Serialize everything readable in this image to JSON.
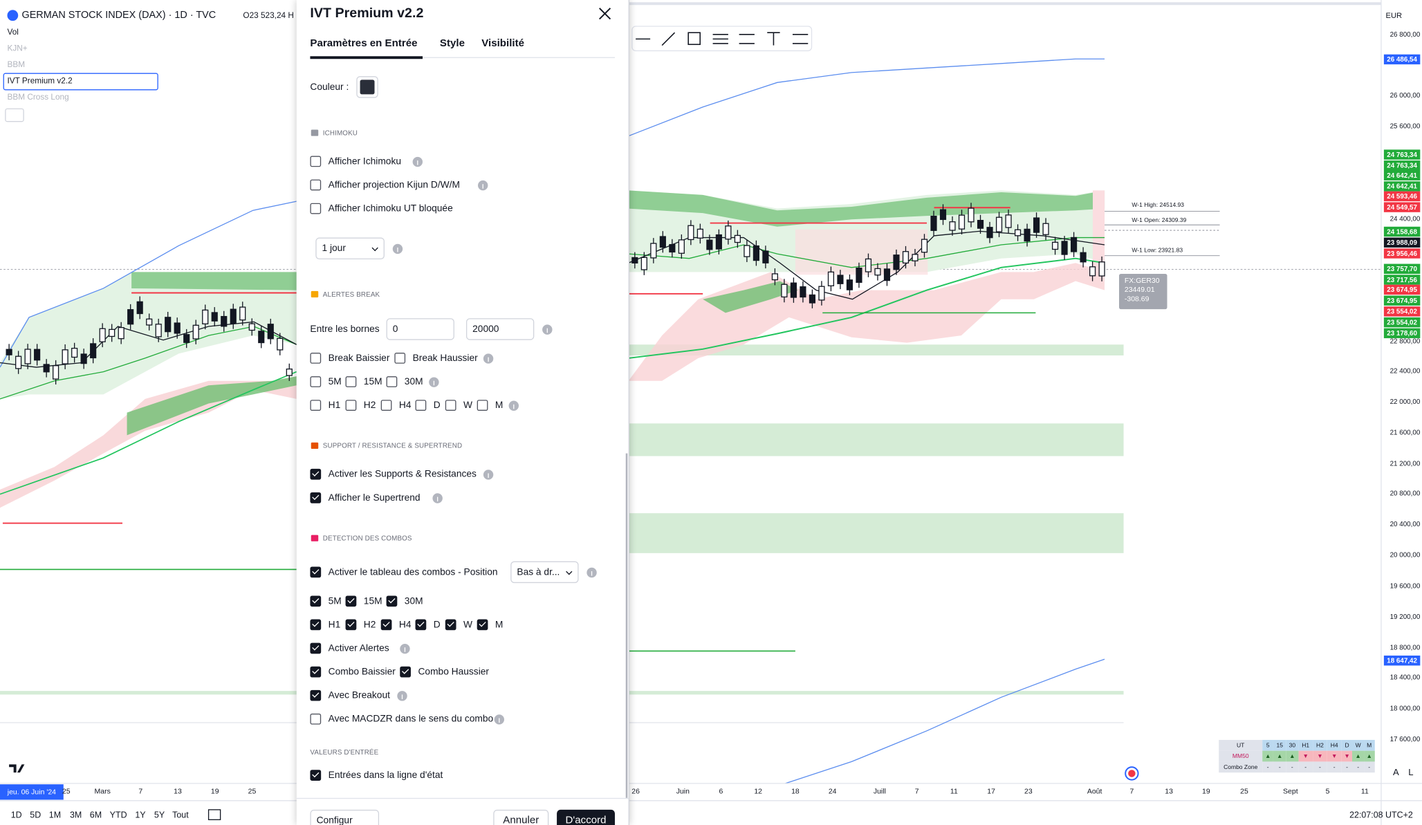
{
  "header": {
    "symbol": "GERMAN STOCK INDEX (DAX) · 1D · TVC",
    "ohlc": "O23 523,24 H"
  },
  "indicators": [
    "Vol",
    "KJN+",
    "BBM",
    "IVT Premium v2.2",
    "BBM Cross Long"
  ],
  "dialog": {
    "title": "IVT Premium v2.2",
    "tabs": [
      "Paramètres en Entrée",
      "Style",
      "Visibilité"
    ],
    "color_label": "Couleur :",
    "ichimoku": {
      "heading": "ICHIMOKU",
      "options": [
        {
          "label": "Afficher Ichimoku",
          "checked": false
        },
        {
          "label": "Afficher projection Kijun D/W/M",
          "checked": false
        },
        {
          "label": "Afficher Ichimoku UT bloquée",
          "checked": false
        }
      ],
      "period": "1 jour"
    },
    "alerts": {
      "heading": "ALERTES BREAK",
      "range_label": "Entre les bornes",
      "range": [
        0,
        20000
      ],
      "options": [
        {
          "label": "Break Baissier",
          "checked": false
        },
        {
          "label": "Break Haussier",
          "checked": false
        },
        {
          "label": "5M",
          "checked": false
        },
        {
          "label": "15M",
          "checked": false
        },
        {
          "label": "30M",
          "checked": false
        },
        {
          "label": "H1",
          "checked": false
        },
        {
          "label": "H2",
          "checked": false
        },
        {
          "label": "H4",
          "checked": false
        },
        {
          "label": "D",
          "checked": false
        },
        {
          "label": "W",
          "checked": false
        },
        {
          "label": "M",
          "checked": false
        }
      ]
    },
    "support": {
      "heading": "SUPPORT / RESISTANCE & SUPERTREND",
      "options": [
        {
          "label": "Activer les Supports & Resistances",
          "checked": true
        },
        {
          "label": "Afficher le Supertrend",
          "checked": true
        }
      ]
    },
    "combos": {
      "heading": "DETECTION DES COMBOS",
      "position": "Bas à dr...",
      "options": [
        {
          "label": "Activer le tableau des combos  - Position",
          "checked": true
        },
        {
          "label": "5M",
          "checked": true
        },
        {
          "label": "15M",
          "checked": true
        },
        {
          "label": "30M",
          "checked": true
        },
        {
          "label": "H1",
          "checked": true
        },
        {
          "label": "H2",
          "checked": true
        },
        {
          "label": "H4",
          "checked": true
        },
        {
          "label": "D",
          "checked": true
        },
        {
          "label": "W",
          "checked": true
        },
        {
          "label": "M",
          "checked": true
        },
        {
          "label": "Activer Alertes",
          "checked": true
        },
        {
          "label": "Combo Baissier",
          "checked": true
        },
        {
          "label": "Combo Haussier",
          "checked": true
        },
        {
          "label": "Avec Breakout",
          "checked": true
        },
        {
          "label": "Avec MACDZR dans le sens du combo",
          "checked": false
        }
      ]
    },
    "entries": {
      "heading": "VALEURS D'ENTRÉE",
      "options": [
        {
          "label": "Entrées dans la ligne d'état",
          "checked": true
        }
      ]
    },
    "buttons": {
      "preset": "Configur",
      "cancel": "Annuler",
      "ok": "D'accord"
    }
  },
  "price_axis": {
    "currency": "EUR",
    "labels": [
      "26 800,00",
      "26 000,00",
      "25 600,00",
      "24 400,00",
      "22 800,00",
      "22 400,00",
      "22 000,00",
      "21 600,00",
      "21 200,00",
      "20 800,00",
      "20 400,00",
      "20 000,00",
      "19 600,00",
      "19 200,00",
      "18 800,00",
      "18 400,00",
      "18 000,00",
      "17 600,00"
    ],
    "badges": [
      {
        "text": "26 486,54",
        "color": "#2962ff"
      },
      {
        "text": "24 763,34",
        "color": "#22ab3a"
      },
      {
        "text": "24 763,34",
        "color": "#22ab3a"
      },
      {
        "text": "24 642,41",
        "color": "#22ab3a"
      },
      {
        "text": "24 642,41",
        "color": "#22ab3a"
      },
      {
        "text": "24 593,46",
        "color": "#f23645"
      },
      {
        "text": "24 549,57",
        "color": "#f23645"
      },
      {
        "text": "24 158,68",
        "color": "#22ab3a"
      },
      {
        "text": "23 988,09",
        "color": "#131722"
      },
      {
        "text": "23 956,46",
        "color": "#f23645"
      },
      {
        "text": "23 757,70",
        "color": "#22ab3a"
      },
      {
        "text": "23 717,56",
        "color": "#22ab3a"
      },
      {
        "text": "23 674,95",
        "color": "#f23645"
      },
      {
        "text": "23 674,95",
        "color": "#22ab3a"
      },
      {
        "text": "23 554,02",
        "color": "#f23645"
      },
      {
        "text": "23 554,02",
        "color": "#22ab3a"
      },
      {
        "text": "23 178,60",
        "color": "#22ab3a"
      },
      {
        "text": "18 647,42",
        "color": "#2962ff"
      }
    ]
  },
  "time_axis": {
    "cursor": "jeu. 06 Juin '24",
    "left": [
      "25",
      "Mars",
      "7",
      "13",
      "19",
      "25"
    ],
    "right": [
      "26",
      "Juin",
      "6",
      "12",
      "18",
      "24",
      "Juill",
      "7",
      "11",
      "17",
      "23",
      "Août",
      "7",
      "13",
      "19",
      "25",
      "Sept",
      "5",
      "11"
    ]
  },
  "annotations": {
    "levels": [
      "W-1 High: 24514.93",
      "W-1 Open: 24309.39",
      "W-1 Low: 23921.83"
    ],
    "tooltip": [
      "FX:GER30",
      "23449.01",
      "-308.69"
    ]
  },
  "combo_table": {
    "header": [
      "UT",
      "5",
      "15",
      "30",
      "H1",
      "H2",
      "H4",
      "D",
      "W",
      "M"
    ],
    "rows": [
      [
        "MM50",
        "▲",
        "▲",
        "▲",
        "▼",
        "▼",
        "▼",
        "▼",
        "▲",
        "▲"
      ],
      [
        "Combo Zone",
        "-",
        "-",
        "-",
        "-",
        "-",
        "-",
        "-",
        "-",
        "-"
      ]
    ]
  },
  "bottom_bar": {
    "ranges": [
      "1D",
      "5D",
      "1M",
      "3M",
      "6M",
      "YTD",
      "1Y",
      "5Y",
      "Tout"
    ],
    "clock": "22:07:08 UTC+2",
    "toggles": [
      "A",
      "L"
    ]
  }
}
